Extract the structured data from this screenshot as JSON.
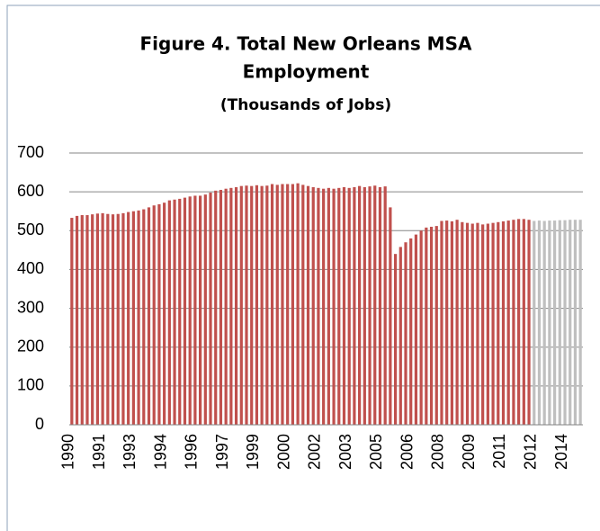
{
  "chart_data": {
    "type": "bar",
    "title": [
      "Figure 4. Total New Orleans MSA",
      "Employment"
    ],
    "subtitle": "(Thousands of Jobs)",
    "categories": [
      "1990",
      null,
      null,
      null,
      null,
      null,
      "1991",
      null,
      null,
      null,
      null,
      null,
      "1993",
      null,
      null,
      null,
      null,
      null,
      "1994",
      null,
      null,
      null,
      null,
      null,
      "1996",
      null,
      null,
      null,
      null,
      null,
      "1997",
      null,
      null,
      null,
      null,
      null,
      "1999",
      null,
      null,
      null,
      null,
      null,
      "2000",
      null,
      null,
      null,
      null,
      null,
      "2002",
      null,
      null,
      null,
      null,
      null,
      "2003",
      null,
      null,
      null,
      null,
      null,
      "2005",
      null,
      null,
      null,
      null,
      null,
      "2006",
      null,
      null,
      null,
      null,
      null,
      "2008",
      null,
      null,
      null,
      null,
      null,
      "2009",
      null,
      null,
      null,
      null,
      null,
      "2011",
      null,
      null,
      null,
      null,
      null,
      "2012",
      null,
      null,
      null,
      null,
      null,
      "2014",
      null,
      null,
      null
    ],
    "series": [
      {
        "color": "#c0504d",
        "values": [
          533,
          538,
          540,
          540,
          542,
          544,
          545,
          543,
          542,
          543,
          545,
          548,
          550,
          552,
          555,
          560,
          565,
          568,
          572,
          578,
          580,
          582,
          585,
          588,
          590,
          590,
          593,
          598,
          603,
          605,
          608,
          610,
          612,
          615,
          616,
          615,
          617,
          615,
          616,
          620,
          618,
          620,
          620,
          620,
          622,
          618,
          615,
          612,
          610,
          608,
          610,
          608,
          610,
          612,
          610,
          612,
          615,
          612,
          614,
          616,
          612,
          614,
          560,
          440,
          458,
          470,
          480,
          490,
          500,
          508,
          510,
          512,
          525,
          526,
          524,
          528,
          522,
          520,
          518,
          520,
          516,
          518,
          520,
          522,
          524,
          526,
          528,
          530,
          530,
          528,
          null,
          null,
          null,
          null,
          null,
          null,
          null,
          null,
          null,
          null
        ]
      },
      {
        "color": "#bfbfbf",
        "values": [
          null,
          null,
          null,
          null,
          null,
          null,
          null,
          null,
          null,
          null,
          null,
          null,
          null,
          null,
          null,
          null,
          null,
          null,
          null,
          null,
          null,
          null,
          null,
          null,
          null,
          null,
          null,
          null,
          null,
          null,
          null,
          null,
          null,
          null,
          null,
          null,
          null,
          null,
          null,
          null,
          null,
          null,
          null,
          null,
          null,
          null,
          null,
          null,
          null,
          null,
          null,
          null,
          null,
          null,
          null,
          null,
          null,
          null,
          null,
          null,
          null,
          null,
          null,
          null,
          null,
          null,
          null,
          null,
          null,
          null,
          null,
          null,
          null,
          null,
          null,
          null,
          null,
          null,
          null,
          null,
          null,
          null,
          null,
          null,
          null,
          null,
          null,
          null,
          null,
          null,
          525,
          526,
          525,
          526,
          526,
          527,
          527,
          528,
          528,
          528
        ]
      }
    ],
    "ylim": [
      0,
      700
    ],
    "yticks": [
      0,
      100,
      200,
      300,
      400,
      500,
      600,
      700
    ],
    "grid": true
  }
}
